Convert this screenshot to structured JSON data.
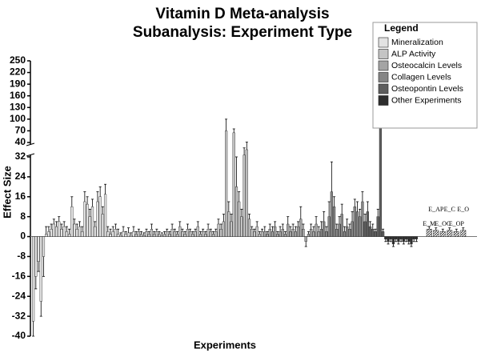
{
  "chart_data": {
    "type": "bar",
    "title": "Vitamin D Meta-analysis",
    "subtitle": "Subanalysis: Experiment Type",
    "x_label": "Experiments",
    "y_label": "Effect Size",
    "ylim": [
      -40,
      250
    ],
    "y_break": [
      32,
      40
    ],
    "yticks": [
      -40,
      -32,
      -24,
      -16,
      -8,
      0,
      8,
      16,
      24,
      32,
      40,
      70,
      100,
      130,
      160,
      190,
      220,
      250
    ],
    "legend_title": "Legend",
    "legend": "top-right",
    "series": [
      {
        "name": "Mineralization",
        "color": "#e2e2e2",
        "values": [
          -34,
          -16,
          -10,
          -26,
          -8,
          1,
          2,
          3,
          5,
          4,
          6,
          3,
          4,
          2,
          1,
          12,
          5,
          3,
          4,
          2,
          14,
          13,
          8,
          12,
          4,
          14,
          16,
          9,
          17,
          2,
          1,
          2,
          3,
          1,
          0.5,
          2,
          1,
          1.5,
          0.5,
          2
        ],
        "errors": [
          6,
          5,
          4,
          6,
          8,
          3,
          2,
          2,
          2,
          2,
          2,
          2,
          2,
          2,
          2,
          4,
          2,
          2,
          2,
          2,
          4,
          3,
          3,
          3,
          2,
          4,
          4,
          3,
          4,
          2,
          2,
          2,
          2,
          2,
          1,
          2,
          1,
          2,
          1,
          2
        ]
      },
      {
        "name": "ALP Activity",
        "color": "#c4c4c4",
        "values": [
          1,
          2,
          1,
          0.5,
          2,
          1,
          3,
          1,
          2,
          1,
          0.5,
          1,
          2,
          1,
          3,
          2,
          1,
          4,
          2,
          1,
          3,
          2,
          1,
          2,
          4,
          1,
          2,
          1,
          3,
          2,
          1,
          2,
          5,
          3,
          6,
          70,
          10,
          6,
          65,
          20,
          14,
          8,
          33,
          36,
          7,
          3,
          2,
          4,
          1,
          2
        ],
        "errors": [
          1,
          1,
          1,
          1,
          1,
          1,
          2,
          1,
          1,
          1,
          1,
          1,
          1,
          1,
          2,
          1,
          1,
          2,
          1,
          1,
          2,
          1,
          1,
          1,
          2,
          1,
          1,
          1,
          2,
          1,
          1,
          1,
          2,
          2,
          3,
          30,
          4,
          3,
          10,
          12,
          4,
          3,
          4,
          5,
          2,
          1,
          1,
          2,
          1,
          1
        ]
      },
      {
        "name": "Osteocalcin Levels",
        "color": "#a4a4a4",
        "values": [
          2,
          1,
          3,
          2,
          4,
          1,
          2,
          3,
          1,
          5,
          2,
          3,
          2,
          4,
          7,
          3,
          -2,
          1,
          3,
          2,
          5,
          2
        ],
        "errors": [
          2,
          1,
          2,
          2,
          2,
          1,
          2,
          2,
          1,
          3,
          2,
          2,
          2,
          2,
          5,
          2,
          2,
          1,
          2,
          2,
          3,
          2
        ]
      },
      {
        "name": "Collagen Levels",
        "color": "#858585",
        "values": [
          3,
          6,
          2,
          8,
          18,
          12,
          3,
          5,
          9,
          2,
          4,
          3,
          6,
          12,
          10,
          8,
          14
        ],
        "errors": [
          3,
          4,
          2,
          6,
          12,
          4,
          2,
          3,
          4,
          2,
          3,
          2,
          4,
          3,
          4,
          3,
          4
        ]
      },
      {
        "name": "Osteopontin Levels",
        "color": "#5e5e5e",
        "values": [
          6,
          10,
          4,
          3,
          2,
          8,
          180,
          2
        ],
        "errors": [
          3,
          4,
          2,
          2,
          1,
          3,
          60,
          1
        ]
      },
      {
        "name": "Other Experiments",
        "color": "#2e2e2e",
        "values": [
          -1,
          -2,
          -1,
          -3,
          -1,
          -2,
          -1,
          -2,
          -1,
          -2,
          -3,
          -1,
          -1
        ],
        "errors": [
          1,
          1,
          1,
          1,
          1,
          1,
          1,
          1,
          1,
          1,
          1,
          1,
          1
        ]
      }
    ],
    "summary": {
      "labels": [
        "E_M",
        "E_AP",
        "E_OC",
        "E_C",
        "E_OP",
        "E_O"
      ],
      "values": [
        3,
        2.5,
        2,
        2.5,
        2,
        2.5
      ],
      "errors": [
        1,
        1,
        1,
        1,
        1,
        1
      ]
    }
  }
}
